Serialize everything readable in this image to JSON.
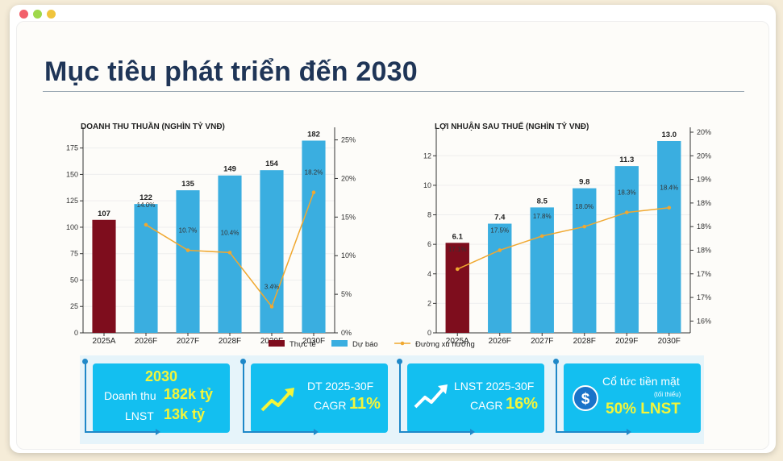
{
  "slide": {
    "title": "Mục tiêu phát triển đến 2030"
  },
  "chart_data": [
    {
      "type": "bar",
      "title": "DOANH THU THUẦN (NGHÌN TỶ VNĐ)",
      "categories": [
        "2025A",
        "2026F",
        "2027F",
        "2028F",
        "2029F",
        "2030F"
      ],
      "values": [
        107,
        122,
        135,
        149,
        154,
        182
      ],
      "value_labels": [
        "107",
        "122",
        "135",
        "149",
        "154",
        "182"
      ],
      "bar_kinds": [
        "actual",
        "forecast",
        "forecast",
        "forecast",
        "forecast",
        "forecast"
      ],
      "ylim": [
        0,
        190
      ],
      "yticks": [
        0,
        25,
        50,
        75,
        100,
        125,
        150,
        175
      ],
      "y2lim": [
        0,
        0.26
      ],
      "y2ticks": [
        0,
        0.05,
        0.1,
        0.15,
        0.2,
        0.25
      ],
      "y2ticklabels": [
        "0%",
        "5%",
        "10%",
        "15%",
        "20%",
        "25%"
      ],
      "line_series": {
        "values": [
          null,
          0.14,
          0.107,
          0.104,
          0.034,
          0.182
        ],
        "labels": [
          "",
          "14.0%",
          "10.7%",
          "10.4%",
          "3.4%",
          "18.2%"
        ]
      }
    },
    {
      "type": "bar",
      "title": "LỢI NHUẬN SAU THUẾ (NGHÌN TỶ VNĐ)",
      "categories": [
        "2025A",
        "2026F",
        "2027F",
        "2028F",
        "2029F",
        "2030F"
      ],
      "values": [
        6.1,
        7.4,
        8.5,
        9.8,
        11.3,
        13.0
      ],
      "value_labels": [
        "6.1",
        "7.4",
        "8.5",
        "9.8",
        "11.3",
        "13.0"
      ],
      "bar_kinds": [
        "actual",
        "forecast",
        "forecast",
        "forecast",
        "forecast",
        "forecast"
      ],
      "ylim": [
        0,
        13.6
      ],
      "yticks": [
        0,
        2,
        4,
        6,
        8,
        10,
        12
      ],
      "y2lim": [
        0.1575,
        0.2
      ],
      "y2ticks": [
        0.16,
        0.165,
        0.17,
        0.175,
        0.18,
        0.185,
        0.19,
        0.195,
        0.2
      ],
      "y2ticklabels": [
        "16%",
        "17%",
        "17%",
        "18%",
        "18%",
        "18%",
        "19%",
        "20%",
        "20%"
      ],
      "line_series": {
        "values": [
          0.171,
          0.175,
          0.178,
          0.18,
          0.183,
          0.184
        ],
        "labels": [
          "17.1%",
          "17.5%",
          "17.8%",
          "18.0%",
          "18.3%",
          "18.4%"
        ]
      }
    }
  ],
  "legend": {
    "items": [
      {
        "label": "Thực tế",
        "color": "#7e0d1d",
        "kind": "box"
      },
      {
        "label": "Dự báo",
        "color": "#3aaee0",
        "kind": "box"
      },
      {
        "label": "Đường xu hướng",
        "color": "#f0a830",
        "kind": "line"
      }
    ]
  },
  "colors": {
    "actual": "#7e0d1d",
    "forecast": "#3aaee0",
    "trend": "#f0a830",
    "card": "#13bff0",
    "highlight": "#f3f53a"
  },
  "banner": {
    "card1": {
      "year": "2030",
      "rev_label": "Doanh thu",
      "rev_value": "182k tỷ",
      "np_label": "LNST",
      "np_value": "13k tỷ"
    },
    "card2": {
      "icon": "trend-up-icon",
      "line1": "DT 2025-30F",
      "cagr_label": "CAGR",
      "cagr_value": "11%"
    },
    "card3": {
      "icon": "trend-up-icon",
      "line1": "LNST 2025-30F",
      "cagr_label": "CAGR",
      "cagr_value": "16%"
    },
    "card4": {
      "icon": "dollar-icon",
      "line1": "Cổ tức tiền mặt",
      "note": "(tối thiểu)",
      "value": "50% LNST"
    }
  }
}
